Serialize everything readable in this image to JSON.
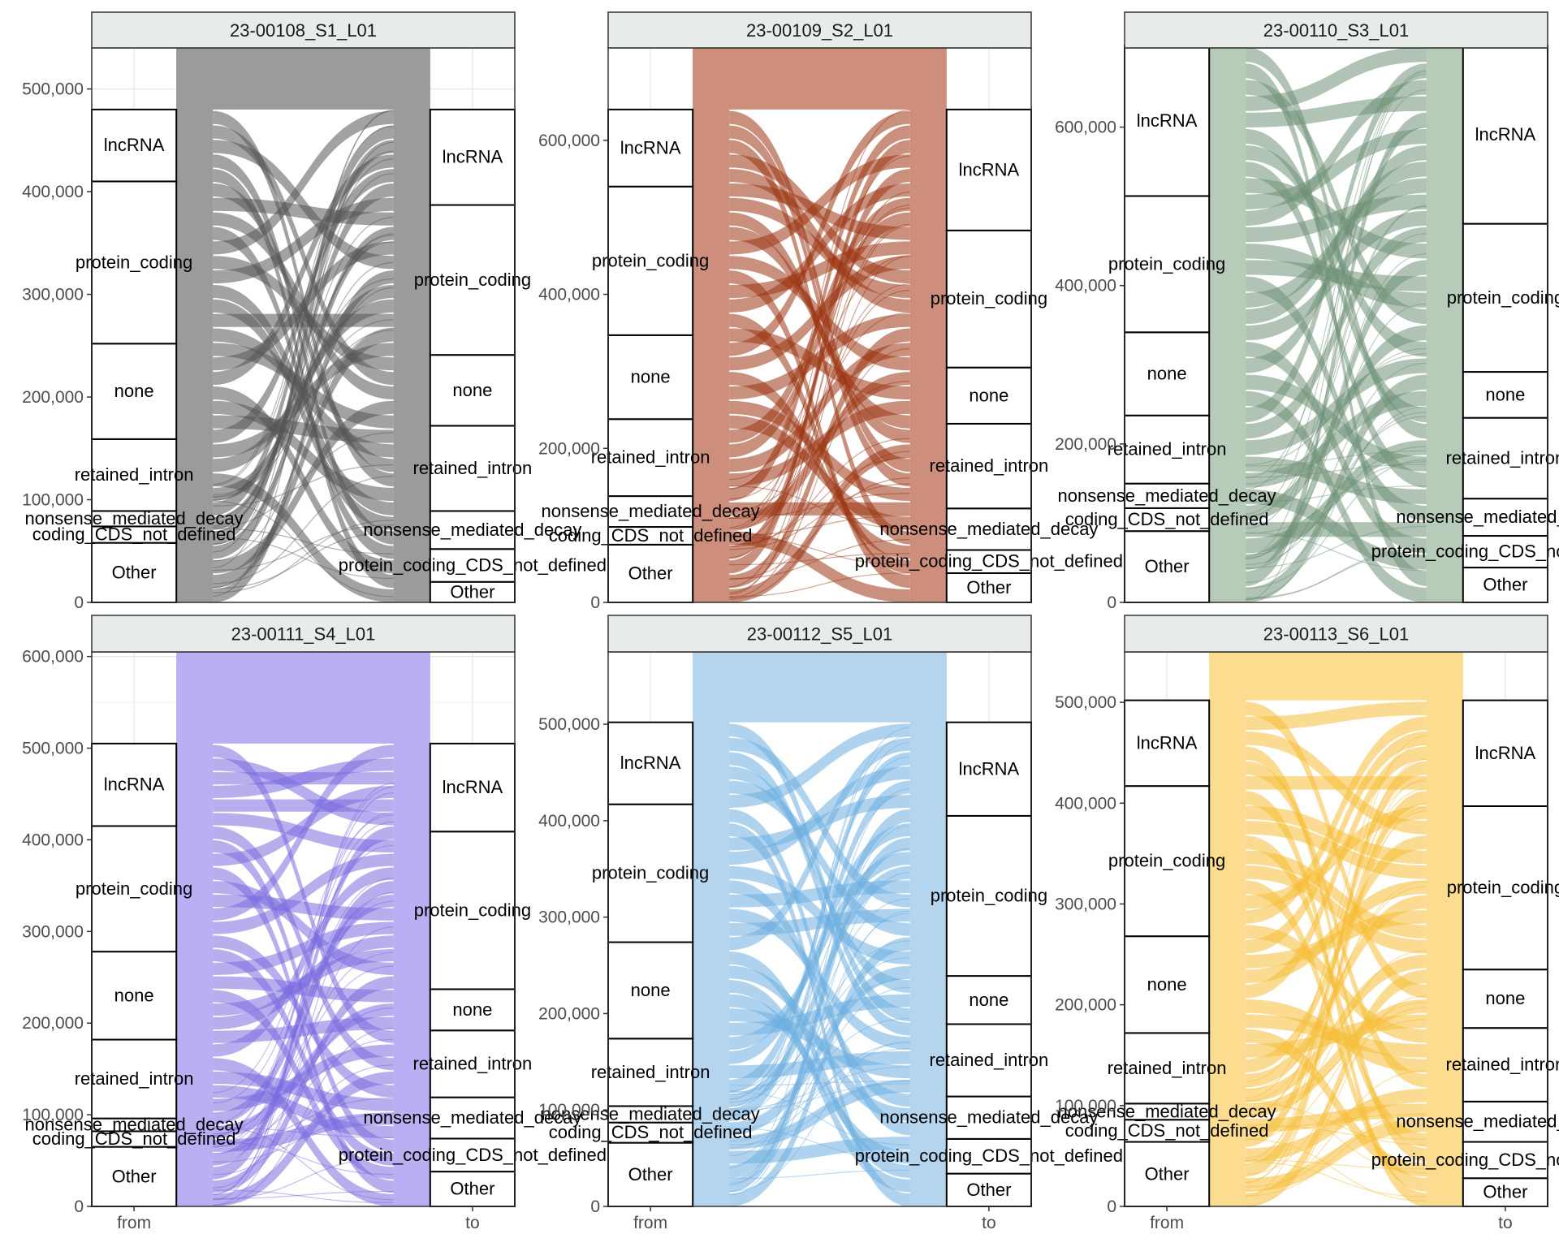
{
  "chart_data": {
    "type": "alluvial",
    "x_axis": {
      "categories": [
        "from",
        "to"
      ]
    },
    "grid": true,
    "panels": [
      {
        "title": "23-00108_S1_L01",
        "fill": "#9b9b9b",
        "flow_color": "#555555",
        "ylim": [
          0,
          540000
        ],
        "yticks": [
          0,
          100000,
          200000,
          300000,
          400000,
          500000
        ],
        "ytick_labels": [
          "0",
          "100,000",
          "200,000",
          "300,000",
          "400,000",
          "500,000"
        ],
        "from": [
          {
            "label": "Other",
            "value": 58000
          },
          {
            "label": "coding_CDS_not_defined",
            "value": 16000
          },
          {
            "label": "nonsense_mediated_decay",
            "value": 15000
          },
          {
            "label": "retained_intron",
            "value": 70000
          },
          {
            "label": "none",
            "value": 93000
          },
          {
            "label": "protein_coding",
            "value": 158000
          },
          {
            "label": "lncRNA",
            "value": 70000
          }
        ],
        "to": [
          {
            "label": "Other",
            "value": 20000
          },
          {
            "label": "protein_coding_CDS_not_defined",
            "value": 32000
          },
          {
            "label": "nonsense_mediated_decay",
            "value": 37000
          },
          {
            "label": "retained_intron",
            "value": 83000
          },
          {
            "label": "none",
            "value": 69000
          },
          {
            "label": "protein_coding",
            "value": 146000
          },
          {
            "label": "lncRNA",
            "value": 93000
          }
        ]
      },
      {
        "title": "23-00109_S2_L01",
        "fill": "#cd8f7c",
        "flow_color": "#9a3412",
        "ylim": [
          0,
          720000
        ],
        "yticks": [
          0,
          200000,
          400000,
          600000
        ],
        "ytick_labels": [
          "0",
          "200,000",
          "400,000",
          "600,000"
        ],
        "from": [
          {
            "label": "Other",
            "value": 75000
          },
          {
            "label": "coding_CDS_not_defined",
            "value": 23000
          },
          {
            "label": "nonsense_mediated_decay",
            "value": 40000
          },
          {
            "label": "retained_intron",
            "value": 100000
          },
          {
            "label": "none",
            "value": 109000
          },
          {
            "label": "protein_coding",
            "value": 193000
          },
          {
            "label": "lncRNA",
            "value": 100000
          }
        ],
        "to": [
          {
            "label": "Other",
            "value": 38000
          },
          {
            "label": "protein_coding_CDS_not_defined",
            "value": 30000
          },
          {
            "label": "nonsense_mediated_decay",
            "value": 54000
          },
          {
            "label": "retained_intron",
            "value": 110000
          },
          {
            "label": "none",
            "value": 73000
          },
          {
            "label": "protein_coding",
            "value": 178000
          },
          {
            "label": "lncRNA",
            "value": 157000
          }
        ]
      },
      {
        "title": "23-00110_S3_L01",
        "fill": "#b7cbb9",
        "flow_color": "#6f9176",
        "ylim": [
          0,
          700000
        ],
        "yticks": [
          0,
          200000,
          400000,
          600000
        ],
        "ytick_labels": [
          "0",
          "200,000",
          "400,000",
          "600,000"
        ],
        "from": [
          {
            "label": "Other",
            "value": 90000
          },
          {
            "label": "coding_CDS_not_defined",
            "value": 29000
          },
          {
            "label": "nonsense_mediated_decay",
            "value": 31000
          },
          {
            "label": "retained_intron",
            "value": 86000
          },
          {
            "label": "none",
            "value": 105000
          },
          {
            "label": "protein_coding",
            "value": 172000
          },
          {
            "label": "lncRNA",
            "value": 190000
          }
        ],
        "to": [
          {
            "label": "Other",
            "value": 44000
          },
          {
            "label": "protein_coding_CDS_not_defined",
            "value": 40000
          },
          {
            "label": "nonsense_mediated_decay",
            "value": 47000
          },
          {
            "label": "retained_intron",
            "value": 102000
          },
          {
            "label": "none",
            "value": 58000
          },
          {
            "label": "protein_coding",
            "value": 187000
          },
          {
            "label": "lncRNA",
            "value": 225000
          }
        ]
      },
      {
        "title": "23-00111_S4_L01",
        "fill": "#b8b0f2",
        "flow_color": "#7b6be0",
        "ylim": [
          0,
          605000
        ],
        "yticks": [
          0,
          100000,
          200000,
          300000,
          400000,
          500000,
          600000
        ],
        "ytick_labels": [
          "0",
          "100,000",
          "200,000",
          "300,000",
          "400,000",
          "500,000",
          "600,000"
        ],
        "from": [
          {
            "label": "Other",
            "value": 65000
          },
          {
            "label": "coding_CDS_not_defined",
            "value": 17000
          },
          {
            "label": "nonsense_mediated_decay",
            "value": 14000
          },
          {
            "label": "retained_intron",
            "value": 86000
          },
          {
            "label": "none",
            "value": 96000
          },
          {
            "label": "protein_coding",
            "value": 137000
          },
          {
            "label": "lncRNA",
            "value": 90000
          }
        ],
        "to": [
          {
            "label": "Other",
            "value": 38000
          },
          {
            "label": "protein_coding_CDS_not_defined",
            "value": 36000
          },
          {
            "label": "nonsense_mediated_decay",
            "value": 45000
          },
          {
            "label": "retained_intron",
            "value": 73000
          },
          {
            "label": "none",
            "value": 45000
          },
          {
            "label": "protein_coding",
            "value": 172000
          },
          {
            "label": "lncRNA",
            "value": 96000
          }
        ]
      },
      {
        "title": "23-00112_S5_L01",
        "fill": "#b5d5ef",
        "flow_color": "#6eaee0",
        "ylim": [
          0,
          575000
        ],
        "yticks": [
          0,
          100000,
          200000,
          300000,
          400000,
          500000
        ],
        "ytick_labels": [
          "0",
          "100,000",
          "200,000",
          "300,000",
          "400,000",
          "500,000"
        ],
        "from": [
          {
            "label": "Other",
            "value": 66000
          },
          {
            "label": "coding_CDS_not_defined",
            "value": 21000
          },
          {
            "label": "nonsense_mediated_decay",
            "value": 17000
          },
          {
            "label": "retained_intron",
            "value": 70000
          },
          {
            "label": "none",
            "value": 100000
          },
          {
            "label": "protein_coding",
            "value": 143000
          },
          {
            "label": "lncRNA",
            "value": 85000
          }
        ],
        "to": [
          {
            "label": "Other",
            "value": 34000
          },
          {
            "label": "protein_coding_CDS_not_defined",
            "value": 36000
          },
          {
            "label": "nonsense_mediated_decay",
            "value": 44000
          },
          {
            "label": "retained_intron",
            "value": 75000
          },
          {
            "label": "none",
            "value": 50000
          },
          {
            "label": "protein_coding",
            "value": 166000
          },
          {
            "label": "lncRNA",
            "value": 97000
          }
        ]
      },
      {
        "title": "23-00113_S6_L01",
        "fill": "#fcdc8e",
        "flow_color": "#f6bd37",
        "ylim": [
          0,
          550000
        ],
        "yticks": [
          0,
          100000,
          200000,
          300000,
          400000,
          500000
        ],
        "ytick_labels": [
          "0",
          "100,000",
          "200,000",
          "300,000",
          "400,000",
          "500,000"
        ],
        "from": [
          {
            "label": "Other",
            "value": 64000
          },
          {
            "label": "coding_CDS_not_defined",
            "value": 22000
          },
          {
            "label": "nonsense_mediated_decay",
            "value": 16000
          },
          {
            "label": "retained_intron",
            "value": 70000
          },
          {
            "label": "none",
            "value": 96000
          },
          {
            "label": "protein_coding",
            "value": 149000
          },
          {
            "label": "lncRNA",
            "value": 85000
          }
        ],
        "to": [
          {
            "label": "Other",
            "value": 28000
          },
          {
            "label": "protein_coding_CDS_not_defined",
            "value": 36000
          },
          {
            "label": "nonsense_mediated_decay",
            "value": 40000
          },
          {
            "label": "retained_intron",
            "value": 73000
          },
          {
            "label": "none",
            "value": 58000
          },
          {
            "label": "protein_coding",
            "value": 162000
          },
          {
            "label": "lncRNA",
            "value": 105000
          }
        ]
      }
    ]
  }
}
